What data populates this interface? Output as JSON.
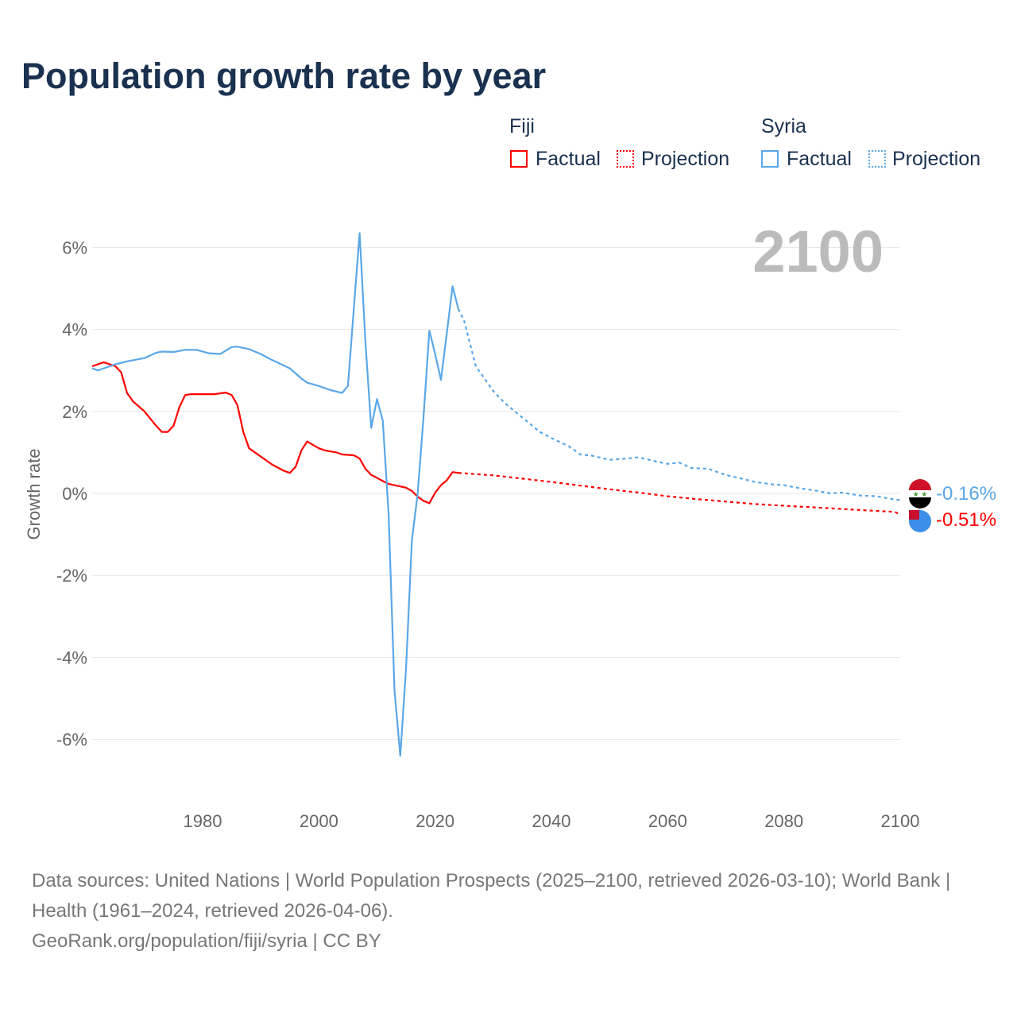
{
  "chart_data": {
    "type": "line",
    "title": "Population growth rate by year",
    "ylabel": "Growth rate",
    "xlabel": "",
    "xlim": [
      1961,
      2100
    ],
    "ylim": [
      -7,
      7
    ],
    "yticks": [
      -6,
      -4,
      -2,
      0,
      2,
      4,
      6
    ],
    "ytick_labels": [
      "-6%",
      "-4%",
      "-2%",
      "0%",
      "2%",
      "4%",
      "6%"
    ],
    "xticks": [
      1980,
      2000,
      2020,
      2040,
      2060,
      2080,
      2100
    ],
    "xtick_labels": [
      "1980",
      "2000",
      "2020",
      "2040",
      "2060",
      "2080",
      "2100"
    ],
    "year_label": "2100",
    "grid": true,
    "legend": {
      "position": "top-right",
      "groups": [
        {
          "name": "Fiji",
          "items": [
            "Factual",
            "Projection"
          ]
        },
        {
          "name": "Syria",
          "items": [
            "Factual",
            "Projection"
          ]
        }
      ]
    },
    "series": [
      {
        "name": "Fiji",
        "color": "#ff0000",
        "end_label": "-0.51%",
        "factual": [
          [
            1961,
            3.1
          ],
          [
            1963,
            3.2
          ],
          [
            1965,
            3.1
          ],
          [
            1966,
            2.95
          ],
          [
            1967,
            2.45
          ],
          [
            1968,
            2.25
          ],
          [
            1970,
            2.0
          ],
          [
            1972,
            1.65
          ],
          [
            1973,
            1.5
          ],
          [
            1974,
            1.5
          ],
          [
            1975,
            1.65
          ],
          [
            1976,
            2.1
          ],
          [
            1977,
            2.4
          ],
          [
            1978,
            2.42
          ],
          [
            1982,
            2.42
          ],
          [
            1984,
            2.46
          ],
          [
            1985,
            2.4
          ],
          [
            1986,
            2.15
          ],
          [
            1987,
            1.5
          ],
          [
            1988,
            1.1
          ],
          [
            1990,
            0.9
          ],
          [
            1992,
            0.7
          ],
          [
            1994,
            0.55
          ],
          [
            1995,
            0.5
          ],
          [
            1996,
            0.65
          ],
          [
            1997,
            1.05
          ],
          [
            1998,
            1.27
          ],
          [
            1999,
            1.18
          ],
          [
            2000,
            1.1
          ],
          [
            2001,
            1.05
          ],
          [
            2003,
            1.0
          ],
          [
            2004,
            0.95
          ],
          [
            2006,
            0.93
          ],
          [
            2007,
            0.85
          ],
          [
            2008,
            0.6
          ],
          [
            2009,
            0.45
          ],
          [
            2010,
            0.38
          ],
          [
            2011,
            0.3
          ],
          [
            2012,
            0.23
          ],
          [
            2013,
            0.2
          ],
          [
            2014,
            0.17
          ],
          [
            2015,
            0.14
          ],
          [
            2016,
            0.06
          ],
          [
            2017,
            -0.08
          ],
          [
            2018,
            -0.18
          ],
          [
            2019,
            -0.24
          ],
          [
            2020,
            0.02
          ],
          [
            2021,
            0.2
          ],
          [
            2022,
            0.32
          ],
          [
            2023,
            0.52
          ],
          [
            2024,
            0.5
          ]
        ],
        "projection": [
          [
            2024,
            0.5
          ],
          [
            2027,
            0.47
          ],
          [
            2030,
            0.44
          ],
          [
            2035,
            0.36
          ],
          [
            2040,
            0.28
          ],
          [
            2045,
            0.19
          ],
          [
            2050,
            0.1
          ],
          [
            2055,
            0.02
          ],
          [
            2060,
            -0.07
          ],
          [
            2065,
            -0.14
          ],
          [
            2070,
            -0.2
          ],
          [
            2075,
            -0.26
          ],
          [
            2080,
            -0.3
          ],
          [
            2085,
            -0.34
          ],
          [
            2090,
            -0.38
          ],
          [
            2095,
            -0.42
          ],
          [
            2099,
            -0.45
          ],
          [
            2100,
            -0.51
          ]
        ]
      },
      {
        "name": "Syria",
        "color": "#5aa7e8",
        "end_label": "-0.16%",
        "factual": [
          [
            1961,
            3.05
          ],
          [
            1962,
            3.0
          ],
          [
            1963,
            3.05
          ],
          [
            1965,
            3.15
          ],
          [
            1967,
            3.22
          ],
          [
            1970,
            3.3
          ],
          [
            1972,
            3.43
          ],
          [
            1973,
            3.46
          ],
          [
            1975,
            3.45
          ],
          [
            1977,
            3.5
          ],
          [
            1979,
            3.5
          ],
          [
            1981,
            3.42
          ],
          [
            1983,
            3.4
          ],
          [
            1985,
            3.57
          ],
          [
            1986,
            3.58
          ],
          [
            1988,
            3.52
          ],
          [
            1990,
            3.4
          ],
          [
            1992,
            3.25
          ],
          [
            1995,
            3.05
          ],
          [
            1997,
            2.8
          ],
          [
            1998,
            2.7
          ],
          [
            2000,
            2.62
          ],
          [
            2002,
            2.52
          ],
          [
            2004,
            2.45
          ],
          [
            2005,
            2.62
          ],
          [
            2007,
            6.35
          ],
          [
            2008,
            3.7
          ],
          [
            2009,
            1.6
          ],
          [
            2010,
            2.3
          ],
          [
            2011,
            1.77
          ],
          [
            2012,
            -0.5
          ],
          [
            2013,
            -4.8
          ],
          [
            2014,
            -6.4
          ],
          [
            2015,
            -4.25
          ],
          [
            2016,
            -1.15
          ],
          [
            2017,
            0.0
          ],
          [
            2018,
            1.85
          ],
          [
            2019,
            3.97
          ],
          [
            2020,
            3.4
          ],
          [
            2021,
            2.77
          ],
          [
            2022,
            3.9
          ],
          [
            2023,
            5.05
          ],
          [
            2024,
            4.5
          ]
        ],
        "projection": [
          [
            2024,
            4.5
          ],
          [
            2025,
            4.2
          ],
          [
            2027,
            3.1
          ],
          [
            2030,
            2.5
          ],
          [
            2032,
            2.2
          ],
          [
            2035,
            1.85
          ],
          [
            2038,
            1.5
          ],
          [
            2040,
            1.35
          ],
          [
            2043,
            1.15
          ],
          [
            2045,
            0.95
          ],
          [
            2047,
            0.92
          ],
          [
            2050,
            0.82
          ],
          [
            2053,
            0.85
          ],
          [
            2055,
            0.88
          ],
          [
            2058,
            0.78
          ],
          [
            2060,
            0.72
          ],
          [
            2062,
            0.75
          ],
          [
            2064,
            0.62
          ],
          [
            2067,
            0.6
          ],
          [
            2070,
            0.45
          ],
          [
            2073,
            0.35
          ],
          [
            2075,
            0.28
          ],
          [
            2078,
            0.22
          ],
          [
            2080,
            0.2
          ],
          [
            2083,
            0.12
          ],
          [
            2085,
            0.08
          ],
          [
            2088,
            0.0
          ],
          [
            2090,
            0.02
          ],
          [
            2093,
            -0.05
          ],
          [
            2096,
            -0.07
          ],
          [
            2099,
            -0.15
          ],
          [
            2100,
            -0.16
          ]
        ]
      }
    ]
  },
  "footer": {
    "line1": "Data sources: United Nations | World Population Prospects (2025–2100, retrieved 2026-03-10); World Bank | Health (1961–2024, retrieved 2026-04-06).",
    "line2": "GeoRank.org/population/fiji/syria | CC BY"
  }
}
